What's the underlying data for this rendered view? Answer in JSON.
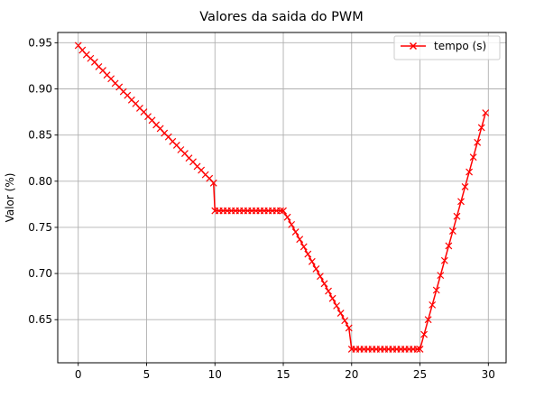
{
  "chart_data": {
    "type": "line",
    "title": "Valores da saida do PWM",
    "xlabel": "",
    "ylabel": "Valor (%)",
    "xlim": [
      -1.5,
      31.3
    ],
    "ylim": [
      0.6033,
      0.9611
    ],
    "x_ticks": [
      0,
      5,
      10,
      15,
      20,
      25,
      30
    ],
    "y_ticks": [
      0.65,
      0.7,
      0.75,
      0.8,
      0.85,
      0.9,
      0.95
    ],
    "y_tick_labels": [
      "0.65",
      "0.70",
      "0.75",
      "0.80",
      "0.85",
      "0.90",
      "0.95"
    ],
    "grid": true,
    "legend_position": "top-right",
    "series": [
      {
        "name": "tempo (s)",
        "color": "#ff0000",
        "marker": "x",
        "x": [
          0,
          0.3,
          0.6,
          0.9,
          1.2,
          1.5,
          1.8,
          2.1,
          2.4,
          2.7,
          3.0,
          3.3,
          3.6,
          3.9,
          4.2,
          4.5,
          4.8,
          5.1,
          5.4,
          5.7,
          6.0,
          6.3,
          6.6,
          6.9,
          7.2,
          7.5,
          7.8,
          8.1,
          8.4,
          8.7,
          9.0,
          9.3,
          9.6,
          9.9,
          10.0,
          10.3,
          10.6,
          10.9,
          11.2,
          11.5,
          11.8,
          12.1,
          12.4,
          12.7,
          13.0,
          13.3,
          13.6,
          13.9,
          14.2,
          14.5,
          14.8,
          15.0,
          15.3,
          15.6,
          15.9,
          16.2,
          16.5,
          16.8,
          17.1,
          17.4,
          17.7,
          18.0,
          18.3,
          18.6,
          18.9,
          19.2,
          19.5,
          19.8,
          20.0,
          20.3,
          20.6,
          20.9,
          21.2,
          21.5,
          21.8,
          22.1,
          22.4,
          22.7,
          23.0,
          23.3,
          23.6,
          23.9,
          24.2,
          24.5,
          24.8,
          25.0,
          25.3,
          25.6,
          25.9,
          26.2,
          26.5,
          26.8,
          27.1,
          27.4,
          27.7,
          28.0,
          28.3,
          28.6,
          28.9,
          29.2,
          29.5,
          29.8
        ],
        "y": [
          0.947,
          0.942,
          0.937,
          0.933,
          0.929,
          0.924,
          0.92,
          0.915,
          0.911,
          0.906,
          0.902,
          0.897,
          0.893,
          0.888,
          0.884,
          0.879,
          0.875,
          0.87,
          0.866,
          0.861,
          0.857,
          0.852,
          0.848,
          0.843,
          0.839,
          0.834,
          0.83,
          0.825,
          0.821,
          0.816,
          0.812,
          0.807,
          0.803,
          0.798,
          0.768,
          0.768,
          0.768,
          0.768,
          0.768,
          0.768,
          0.768,
          0.768,
          0.768,
          0.768,
          0.768,
          0.768,
          0.768,
          0.768,
          0.768,
          0.768,
          0.768,
          0.768,
          0.761,
          0.753,
          0.745,
          0.737,
          0.729,
          0.721,
          0.713,
          0.705,
          0.697,
          0.689,
          0.681,
          0.673,
          0.665,
          0.657,
          0.649,
          0.641,
          0.618,
          0.618,
          0.618,
          0.618,
          0.618,
          0.618,
          0.618,
          0.618,
          0.618,
          0.618,
          0.618,
          0.618,
          0.618,
          0.618,
          0.618,
          0.618,
          0.618,
          0.618,
          0.634,
          0.65,
          0.666,
          0.682,
          0.698,
          0.714,
          0.73,
          0.746,
          0.762,
          0.778,
          0.794,
          0.81,
          0.826,
          0.842,
          0.858,
          0.874
        ]
      }
    ]
  }
}
